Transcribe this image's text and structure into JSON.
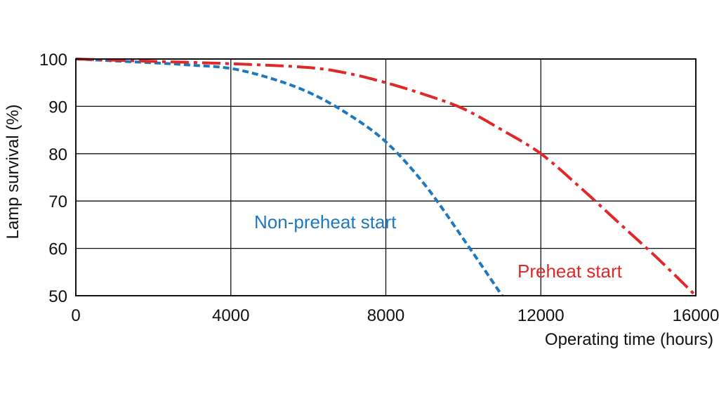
{
  "chart_data": {
    "type": "line",
    "xlabel": "Operating time (hours)",
    "ylabel": "Lamp survival  (%)",
    "xlim": [
      0,
      16000
    ],
    "ylim": [
      50,
      100
    ],
    "xticks": [
      "0",
      "4000",
      "8000",
      "12000",
      "16000"
    ],
    "yticks": [
      "100",
      "90",
      "80",
      "70",
      "60",
      "50"
    ],
    "grid": true,
    "series": [
      {
        "name": "Non-preheat start",
        "color": "#1e78c0",
        "style": "dashed",
        "x": [
          0,
          1000,
          2000,
          3000,
          4000,
          5000,
          6000,
          7000,
          8000,
          9000,
          10000,
          11000
        ],
        "y": [
          100,
          99.6,
          99.2,
          98.7,
          98,
          96,
          93,
          88.5,
          82.5,
          73.5,
          62,
          50
        ]
      },
      {
        "name": "Preheat start",
        "color": "#e02828",
        "style": "dashdot",
        "x": [
          0,
          2000,
          4000,
          6000,
          7000,
          8000,
          9000,
          10000,
          11000,
          12000,
          13000,
          14000,
          15000,
          16000
        ],
        "y": [
          100,
          99.5,
          99,
          98.2,
          97,
          95,
          92.5,
          89.5,
          85,
          80,
          73,
          65.5,
          58,
          50
        ]
      }
    ]
  }
}
